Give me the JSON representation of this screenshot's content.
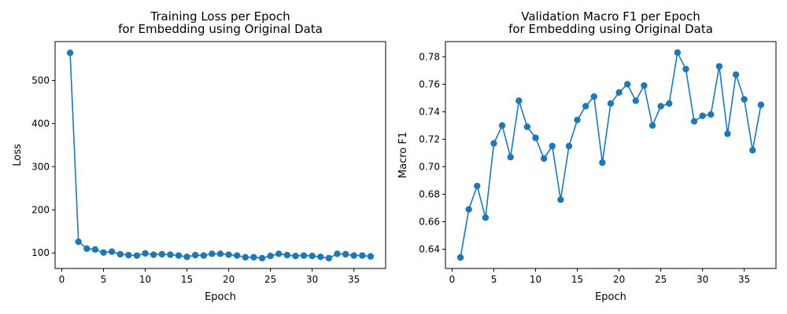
{
  "chart_data": [
    {
      "type": "line",
      "title": [
        "Training Loss per Epoch",
        "for Embedding using Original Data"
      ],
      "xlabel": "Epoch",
      "ylabel": "Loss",
      "xlim": [
        -0.8,
        38.8
      ],
      "ylim": [
        64,
        590
      ],
      "xticks": [
        0,
        5,
        10,
        15,
        20,
        25,
        30,
        35
      ],
      "yticks": [
        100,
        200,
        300,
        400,
        500
      ],
      "grid": false,
      "series_color": "#1f77b4",
      "x": [
        1,
        2,
        3,
        4,
        5,
        6,
        7,
        8,
        9,
        10,
        11,
        12,
        13,
        14,
        15,
        16,
        17,
        18,
        19,
        20,
        21,
        22,
        23,
        24,
        25,
        26,
        27,
        28,
        29,
        30,
        31,
        32,
        33,
        34,
        35,
        36,
        37
      ],
      "y": [
        564,
        126,
        110,
        108,
        101,
        103,
        97,
        95,
        94,
        99,
        96,
        97,
        96,
        94,
        91,
        95,
        94,
        98,
        98,
        96,
        94,
        90,
        90,
        88,
        93,
        98,
        95,
        93,
        94,
        93,
        91,
        88,
        98,
        97,
        94,
        94,
        92
      ]
    },
    {
      "type": "line",
      "title": [
        "Validation Macro F1 per Epoch",
        "for Embedding using Original Data"
      ],
      "xlabel": "Epoch",
      "ylabel": "Macro F1",
      "xlim": [
        -0.8,
        38.8
      ],
      "ylim": [
        0.626,
        0.791
      ],
      "xticks": [
        0,
        5,
        10,
        15,
        20,
        25,
        30,
        35
      ],
      "yticks": [
        0.64,
        0.66,
        0.68,
        0.7,
        0.72,
        0.74,
        0.76,
        0.78
      ],
      "grid": false,
      "series_color": "#1f77b4",
      "x": [
        1,
        2,
        3,
        4,
        5,
        6,
        7,
        8,
        9,
        10,
        11,
        12,
        13,
        14,
        15,
        16,
        17,
        18,
        19,
        20,
        21,
        22,
        23,
        24,
        25,
        26,
        27,
        28,
        29,
        30,
        31,
        32,
        33,
        34,
        35,
        36,
        37
      ],
      "y": [
        0.634,
        0.669,
        0.686,
        0.663,
        0.717,
        0.73,
        0.707,
        0.748,
        0.729,
        0.721,
        0.706,
        0.715,
        0.676,
        0.715,
        0.734,
        0.744,
        0.751,
        0.703,
        0.746,
        0.754,
        0.76,
        0.748,
        0.759,
        0.73,
        0.744,
        0.746,
        0.783,
        0.771,
        0.733,
        0.737,
        0.738,
        0.773,
        0.724,
        0.767,
        0.749,
        0.712,
        0.745
      ]
    }
  ]
}
